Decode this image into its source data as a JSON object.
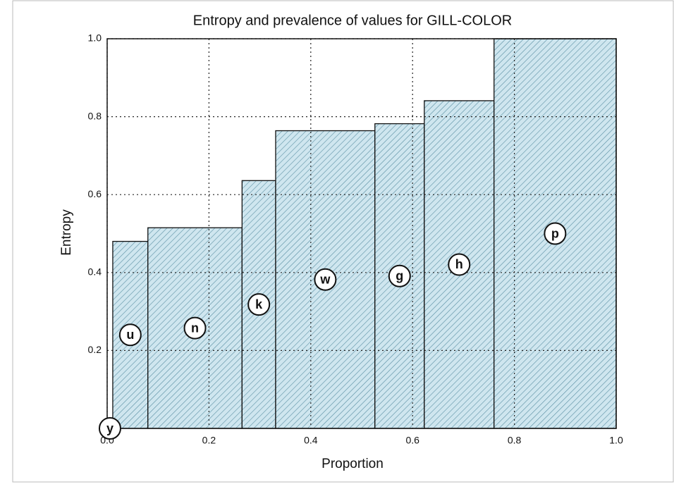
{
  "chart_data": {
    "type": "histogram",
    "title": "Entropy and prevalence of values for GILL-COLOR",
    "xlabel": "Proportion",
    "ylabel": "Entropy",
    "categories": [
      "y",
      "u",
      "n",
      "k",
      "w",
      "g",
      "h",
      "p"
    ],
    "bins": [
      0,
      0.011,
      0.08,
      0.265,
      0.331,
      0.526,
      0.623,
      0.76,
      1.0
    ],
    "values": [
      0,
      0.48,
      0.515,
      0.636,
      0.764,
      0.782,
      0.841,
      1.0
    ],
    "color": "#cfe6ef",
    "hatch_color": "#5a8fa3",
    "xlim": [
      0,
      1
    ],
    "ylim": [
      0,
      1
    ],
    "xticks": [
      {
        "value": 0,
        "label": "0.0"
      },
      0.2,
      0.4,
      0.6,
      0.8,
      {
        "value": 1,
        "label": "1.0"
      }
    ],
    "yticks": [
      0.2,
      0.4,
      0.6,
      0.8,
      {
        "value": 1,
        "label": "1.0"
      }
    ],
    "grid": true
  }
}
